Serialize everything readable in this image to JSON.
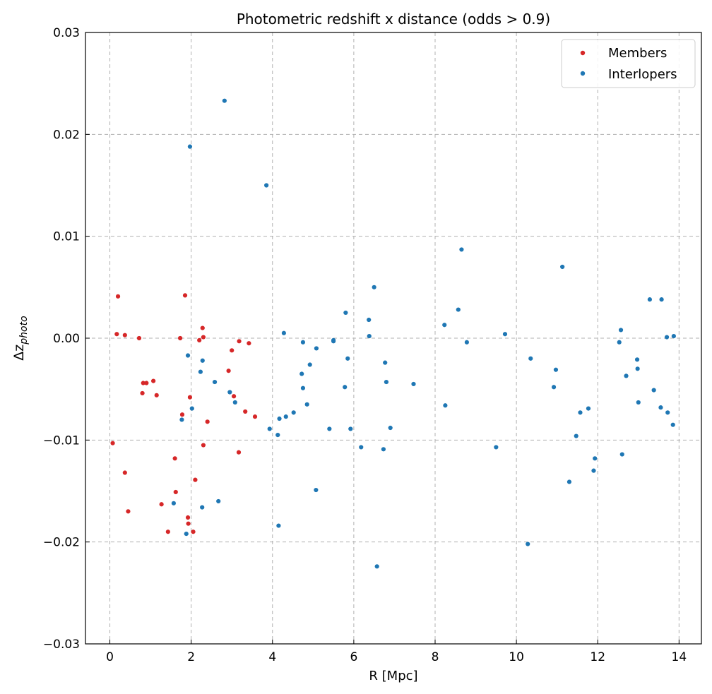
{
  "chart_data": {
    "type": "scatter",
    "title": "Photometric redshift x distance (odds > 0.9)",
    "xlabel": "R [Mpc]",
    "ylabel_main": "Δz",
    "ylabel_sub": "photo",
    "xlim": [
      -0.6,
      14.55
    ],
    "ylim": [
      -0.03,
      0.03
    ],
    "xticks": [
      0,
      2,
      4,
      6,
      8,
      10,
      12,
      14
    ],
    "xtick_labels": [
      "0",
      "2",
      "4",
      "6",
      "8",
      "10",
      "12",
      "14"
    ],
    "yticks": [
      -0.03,
      -0.02,
      -0.01,
      0.0,
      0.01,
      0.02,
      0.03
    ],
    "ytick_labels": [
      "−0.03",
      "−0.02",
      "−0.01",
      "0.00",
      "0.01",
      "0.02",
      "0.03"
    ],
    "grid": true,
    "legend_position": "top-right",
    "series": [
      {
        "name": "Members",
        "color": "#d62728",
        "points": [
          [
            0.07,
            -0.0103
          ],
          [
            0.17,
            0.0004
          ],
          [
            0.2,
            0.0041
          ],
          [
            0.37,
            0.0003
          ],
          [
            0.37,
            -0.0132
          ],
          [
            0.45,
            -0.017
          ],
          [
            0.72,
            0.0
          ],
          [
            0.8,
            -0.0054
          ],
          [
            0.82,
            -0.0044
          ],
          [
            0.9,
            -0.0044
          ],
          [
            1.07,
            -0.0042
          ],
          [
            1.15,
            -0.0056
          ],
          [
            1.27,
            -0.0163
          ],
          [
            1.43,
            -0.019
          ],
          [
            1.6,
            -0.0118
          ],
          [
            1.62,
            -0.0151
          ],
          [
            1.73,
            0.0
          ],
          [
            1.78,
            -0.0075
          ],
          [
            1.85,
            0.0042
          ],
          [
            1.92,
            -0.0176
          ],
          [
            1.93,
            -0.0182
          ],
          [
            1.97,
            -0.0058
          ],
          [
            2.05,
            -0.019
          ],
          [
            2.1,
            -0.0139
          ],
          [
            2.2,
            -0.0002
          ],
          [
            2.28,
            0.001
          ],
          [
            2.3,
            0.0001
          ],
          [
            2.3,
            -0.0105
          ],
          [
            2.4,
            -0.0082
          ],
          [
            2.92,
            -0.0032
          ],
          [
            3.0,
            -0.0012
          ],
          [
            3.05,
            -0.0057
          ],
          [
            3.17,
            -0.0112
          ],
          [
            3.18,
            -0.0003
          ],
          [
            3.33,
            -0.0072
          ],
          [
            3.42,
            -0.0005
          ],
          [
            3.57,
            -0.0077
          ]
        ]
      },
      {
        "name": "Interlopers",
        "color": "#1f77b4",
        "points": [
          [
            1.57,
            -0.0162
          ],
          [
            1.77,
            -0.008
          ],
          [
            1.88,
            -0.0192
          ],
          [
            1.92,
            -0.0017
          ],
          [
            1.97,
            0.0188
          ],
          [
            2.02,
            -0.0069
          ],
          [
            2.23,
            -0.0033
          ],
          [
            2.27,
            -0.0166
          ],
          [
            2.28,
            -0.0022
          ],
          [
            2.58,
            -0.0043
          ],
          [
            2.67,
            -0.016
          ],
          [
            2.82,
            0.0233
          ],
          [
            2.95,
            -0.0053
          ],
          [
            3.08,
            -0.0063
          ],
          [
            3.85,
            0.015
          ],
          [
            3.93,
            -0.0089
          ],
          [
            4.13,
            -0.0095
          ],
          [
            4.15,
            -0.0184
          ],
          [
            4.17,
            -0.0079
          ],
          [
            4.28,
            0.0005
          ],
          [
            4.33,
            -0.0077
          ],
          [
            4.52,
            -0.0073
          ],
          [
            4.72,
            -0.0035
          ],
          [
            4.75,
            -0.0004
          ],
          [
            4.75,
            -0.0049
          ],
          [
            4.85,
            -0.0065
          ],
          [
            4.92,
            -0.0026
          ],
          [
            5.07,
            -0.0149
          ],
          [
            5.08,
            -0.001
          ],
          [
            5.4,
            -0.0089
          ],
          [
            5.5,
            -0.0003
          ],
          [
            5.5,
            -0.0002
          ],
          [
            5.78,
            -0.0048
          ],
          [
            5.8,
            0.0025
          ],
          [
            5.85,
            -0.002
          ],
          [
            5.92,
            -0.0089
          ],
          [
            6.18,
            -0.0107
          ],
          [
            6.37,
            0.0018
          ],
          [
            6.38,
            0.0002
          ],
          [
            6.5,
            0.005
          ],
          [
            6.57,
            -0.0224
          ],
          [
            6.73,
            -0.0109
          ],
          [
            6.77,
            -0.0024
          ],
          [
            6.8,
            -0.0043
          ],
          [
            6.9,
            -0.0088
          ],
          [
            7.47,
            -0.0045
          ],
          [
            8.23,
            0.0013
          ],
          [
            8.25,
            -0.0066
          ],
          [
            8.57,
            0.0028
          ],
          [
            8.65,
            0.0087
          ],
          [
            8.78,
            -0.0004
          ],
          [
            9.5,
            -0.0107
          ],
          [
            9.72,
            0.0004
          ],
          [
            10.28,
            -0.0202
          ],
          [
            10.35,
            -0.002
          ],
          [
            10.92,
            -0.0048
          ],
          [
            10.97,
            -0.0031
          ],
          [
            11.13,
            0.007
          ],
          [
            11.3,
            -0.0141
          ],
          [
            11.47,
            -0.0096
          ],
          [
            11.57,
            -0.0073
          ],
          [
            11.77,
            -0.0069
          ],
          [
            11.9,
            -0.013
          ],
          [
            11.93,
            -0.0118
          ],
          [
            12.53,
            -0.0004
          ],
          [
            12.57,
            0.0008
          ],
          [
            12.6,
            -0.0114
          ],
          [
            12.7,
            -0.0037
          ],
          [
            12.97,
            -0.0021
          ],
          [
            12.98,
            -0.003
          ],
          [
            13.0,
            -0.0063
          ],
          [
            13.28,
            0.0038
          ],
          [
            13.38,
            -0.0051
          ],
          [
            13.55,
            -0.0068
          ],
          [
            13.57,
            0.0038
          ],
          [
            13.7,
            0.0001
          ],
          [
            13.72,
            -0.0073
          ],
          [
            13.85,
            -0.0085
          ],
          [
            13.87,
            0.0002
          ]
        ]
      }
    ]
  }
}
